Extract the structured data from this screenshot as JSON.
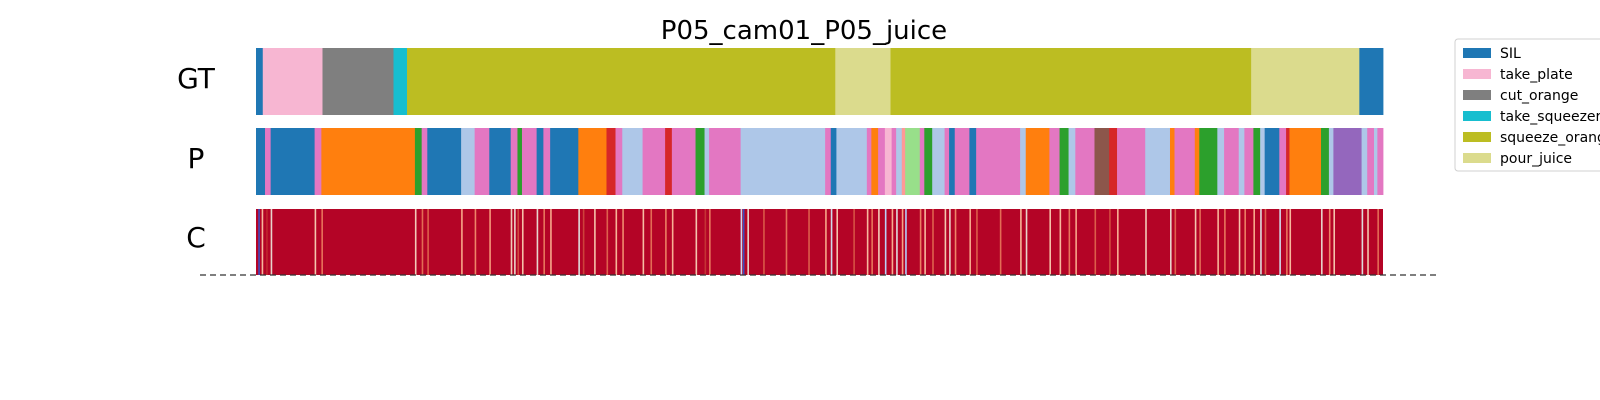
{
  "chart_data": {
    "type": "segmentation",
    "title": "P05_cam01_P05_juice",
    "frame_range": [
      0,
      1000
    ],
    "classes": [
      {
        "name": "SIL",
        "color": "#1f77b4"
      },
      {
        "name": "take_plate",
        "color": "#f7b6d2"
      },
      {
        "name": "cut_orange",
        "color": "#7f7f7f"
      },
      {
        "name": "take_squeezer",
        "color": "#17becf"
      },
      {
        "name": "squeeze_orange",
        "color": "#bcbd22"
      },
      {
        "name": "pour_juice",
        "color": "#dbdb8d"
      }
    ],
    "rows": [
      {
        "label": "GT",
        "segments": [
          {
            "start": 0,
            "end": 6,
            "color": "#1f77b4"
          },
          {
            "start": 6,
            "end": 59,
            "color": "#f7b6d2"
          },
          {
            "start": 59,
            "end": 122,
            "color": "#7f7f7f"
          },
          {
            "start": 122,
            "end": 134,
            "color": "#17becf"
          },
          {
            "start": 134,
            "end": 514,
            "color": "#bcbd22"
          },
          {
            "start": 514,
            "end": 563,
            "color": "#dbdb8d"
          },
          {
            "start": 563,
            "end": 883,
            "color": "#bcbd22"
          },
          {
            "start": 883,
            "end": 979,
            "color": "#dbdb8d"
          },
          {
            "start": 979,
            "end": 1000,
            "color": "#1f77b4"
          }
        ]
      },
      {
        "label": "P",
        "segments": [
          {
            "start": 0,
            "end": 8,
            "color": "#1f77b4"
          },
          {
            "start": 8,
            "end": 13,
            "color": "#e377c2"
          },
          {
            "start": 13,
            "end": 52,
            "color": "#1f77b4"
          },
          {
            "start": 52,
            "end": 58,
            "color": "#e377c2"
          },
          {
            "start": 58,
            "end": 141,
            "color": "#ff7f0e"
          },
          {
            "start": 141,
            "end": 147,
            "color": "#2ca02c"
          },
          {
            "start": 147,
            "end": 152,
            "color": "#e377c2"
          },
          {
            "start": 152,
            "end": 182,
            "color": "#1f77b4"
          },
          {
            "start": 182,
            "end": 194,
            "color": "#aec7e8"
          },
          {
            "start": 194,
            "end": 207,
            "color": "#e377c2"
          },
          {
            "start": 207,
            "end": 226,
            "color": "#1f77b4"
          },
          {
            "start": 226,
            "end": 232,
            "color": "#e377c2"
          },
          {
            "start": 232,
            "end": 236,
            "color": "#2ca02c"
          },
          {
            "start": 236,
            "end": 249,
            "color": "#e377c2"
          },
          {
            "start": 249,
            "end": 255,
            "color": "#1f77b4"
          },
          {
            "start": 255,
            "end": 261,
            "color": "#e377c2"
          },
          {
            "start": 261,
            "end": 286,
            "color": "#1f77b4"
          },
          {
            "start": 286,
            "end": 311,
            "color": "#ff7f0e"
          },
          {
            "start": 311,
            "end": 319,
            "color": "#d62728"
          },
          {
            "start": 319,
            "end": 325,
            "color": "#e377c2"
          },
          {
            "start": 325,
            "end": 343,
            "color": "#aec7e8"
          },
          {
            "start": 343,
            "end": 363,
            "color": "#e377c2"
          },
          {
            "start": 363,
            "end": 369,
            "color": "#d62728"
          },
          {
            "start": 369,
            "end": 390,
            "color": "#e377c2"
          },
          {
            "start": 390,
            "end": 398,
            "color": "#2ca02c"
          },
          {
            "start": 398,
            "end": 402,
            "color": "#aec7e8"
          },
          {
            "start": 402,
            "end": 430,
            "color": "#e377c2"
          },
          {
            "start": 430,
            "end": 505,
            "color": "#aec7e8"
          },
          {
            "start": 505,
            "end": 510,
            "color": "#e377c2"
          },
          {
            "start": 510,
            "end": 515,
            "color": "#1f77b4"
          },
          {
            "start": 515,
            "end": 542,
            "color": "#aec7e8"
          },
          {
            "start": 542,
            "end": 546,
            "color": "#e377c2"
          },
          {
            "start": 546,
            "end": 552,
            "color": "#ff7f0e"
          },
          {
            "start": 552,
            "end": 558,
            "color": "#e377c2"
          },
          {
            "start": 558,
            "end": 564,
            "color": "#f7b6d2"
          },
          {
            "start": 564,
            "end": 568,
            "color": "#e377c2"
          },
          {
            "start": 568,
            "end": 573,
            "color": "#aec7e8"
          },
          {
            "start": 573,
            "end": 576,
            "color": "#ff9896"
          },
          {
            "start": 576,
            "end": 589,
            "color": "#98df8a"
          },
          {
            "start": 589,
            "end": 593,
            "color": "#e377c2"
          },
          {
            "start": 593,
            "end": 600,
            "color": "#2ca02c"
          },
          {
            "start": 600,
            "end": 611,
            "color": "#aec7e8"
          },
          {
            "start": 611,
            "end": 615,
            "color": "#e377c2"
          },
          {
            "start": 615,
            "end": 620,
            "color": "#1f77b4"
          },
          {
            "start": 620,
            "end": 633,
            "color": "#e377c2"
          },
          {
            "start": 633,
            "end": 639,
            "color": "#1f77b4"
          },
          {
            "start": 639,
            "end": 678,
            "color": "#e377c2"
          },
          {
            "start": 678,
            "end": 683,
            "color": "#aec7e8"
          },
          {
            "start": 683,
            "end": 704,
            "color": "#ff7f0e"
          },
          {
            "start": 704,
            "end": 713,
            "color": "#e377c2"
          },
          {
            "start": 713,
            "end": 721,
            "color": "#2ca02c"
          },
          {
            "start": 721,
            "end": 727,
            "color": "#aec7e8"
          },
          {
            "start": 727,
            "end": 744,
            "color": "#e377c2"
          },
          {
            "start": 744,
            "end": 757,
            "color": "#8c564b"
          },
          {
            "start": 757,
            "end": 764,
            "color": "#d62728"
          },
          {
            "start": 764,
            "end": 789,
            "color": "#e377c2"
          },
          {
            "start": 789,
            "end": 811,
            "color": "#aec7e8"
          },
          {
            "start": 811,
            "end": 815,
            "color": "#ff7f0e"
          },
          {
            "start": 815,
            "end": 833,
            "color": "#e377c2"
          },
          {
            "start": 833,
            "end": 837,
            "color": "#ff7f0e"
          },
          {
            "start": 837,
            "end": 853,
            "color": "#2ca02c"
          },
          {
            "start": 853,
            "end": 859,
            "color": "#aec7e8"
          },
          {
            "start": 859,
            "end": 872,
            "color": "#e377c2"
          },
          {
            "start": 872,
            "end": 877,
            "color": "#aec7e8"
          },
          {
            "start": 877,
            "end": 885,
            "color": "#e377c2"
          },
          {
            "start": 885,
            "end": 891,
            "color": "#2ca02c"
          },
          {
            "start": 891,
            "end": 895,
            "color": "#aec7e8"
          },
          {
            "start": 895,
            "end": 908,
            "color": "#1f77b4"
          },
          {
            "start": 908,
            "end": 914,
            "color": "#e377c2"
          },
          {
            "start": 914,
            "end": 917,
            "color": "#d62728"
          },
          {
            "start": 917,
            "end": 945,
            "color": "#ff7f0e"
          },
          {
            "start": 945,
            "end": 952,
            "color": "#2ca02c"
          },
          {
            "start": 952,
            "end": 956,
            "color": "#aec7e8"
          },
          {
            "start": 956,
            "end": 981,
            "color": "#9467bd"
          },
          {
            "start": 981,
            "end": 986,
            "color": "#aec7e8"
          },
          {
            "start": 986,
            "end": 992,
            "color": "#e377c2"
          },
          {
            "start": 992,
            "end": 995,
            "color": "#aec7e8"
          },
          {
            "start": 995,
            "end": 1000,
            "color": "#e377c2"
          }
        ]
      },
      {
        "label": "C",
        "base_color": "#b40426",
        "confidence_stripes": [
          {
            "pos": 2,
            "color": "#3b4cc0"
          },
          {
            "pos": 5,
            "color": "#f7b89c"
          },
          {
            "pos": 9,
            "color": "#c0282f"
          },
          {
            "pos": 13,
            "color": "#e7d4cb"
          },
          {
            "pos": 52,
            "color": "#f4c5ad"
          },
          {
            "pos": 58,
            "color": "#e8735a"
          },
          {
            "pos": 141,
            "color": "#f2cbb7"
          },
          {
            "pos": 147,
            "color": "#e36c55"
          },
          {
            "pos": 152,
            "color": "#dd5f4b"
          },
          {
            "pos": 182,
            "color": "#f7a688"
          },
          {
            "pos": 194,
            "color": "#ee8468"
          },
          {
            "pos": 207,
            "color": "#f4987a"
          },
          {
            "pos": 226,
            "color": "#f2cbb7"
          },
          {
            "pos": 229,
            "color": "#ead5c9"
          },
          {
            "pos": 232,
            "color": "#d24b40"
          },
          {
            "pos": 236,
            "color": "#f5c0a7"
          },
          {
            "pos": 249,
            "color": "#e7d4cb"
          },
          {
            "pos": 255,
            "color": "#e8765c"
          },
          {
            "pos": 261,
            "color": "#f7a98b"
          },
          {
            "pos": 286,
            "color": "#dddcdc"
          },
          {
            "pos": 290,
            "color": "#cd423b"
          },
          {
            "pos": 300,
            "color": "#f5c2aa"
          },
          {
            "pos": 311,
            "color": "#de614d"
          },
          {
            "pos": 319,
            "color": "#f7b497"
          },
          {
            "pos": 325,
            "color": "#f08b6e"
          },
          {
            "pos": 343,
            "color": "#f6bda2"
          },
          {
            "pos": 350,
            "color": "#e36c55"
          },
          {
            "pos": 363,
            "color": "#ec7f63"
          },
          {
            "pos": 369,
            "color": "#f7b093"
          },
          {
            "pos": 390,
            "color": "#f4c5ad"
          },
          {
            "pos": 398,
            "color": "#c53334"
          },
          {
            "pos": 402,
            "color": "#e9785d"
          },
          {
            "pos": 430,
            "color": "#cbd8ee"
          },
          {
            "pos": 432,
            "color": "#3b4cc0"
          },
          {
            "pos": 436,
            "color": "#e7d4cb"
          },
          {
            "pos": 450,
            "color": "#d95847"
          },
          {
            "pos": 470,
            "color": "#e57058"
          },
          {
            "pos": 490,
            "color": "#dc5d4a"
          },
          {
            "pos": 505,
            "color": "#f7a688"
          },
          {
            "pos": 510,
            "color": "#cfdaea"
          },
          {
            "pos": 515,
            "color": "#f5c4ac"
          },
          {
            "pos": 530,
            "color": "#d65244"
          },
          {
            "pos": 542,
            "color": "#f7b89c"
          },
          {
            "pos": 546,
            "color": "#e8765c"
          },
          {
            "pos": 552,
            "color": "#f2cbb7"
          },
          {
            "pos": 558,
            "color": "#bad0f8"
          },
          {
            "pos": 564,
            "color": "#f7ac8e"
          },
          {
            "pos": 568,
            "color": "#dddcdc"
          },
          {
            "pos": 573,
            "color": "#f6a385"
          },
          {
            "pos": 576,
            "color": "#b3cdfb"
          },
          {
            "pos": 589,
            "color": "#ec7f63"
          },
          {
            "pos": 593,
            "color": "#f7b89c"
          },
          {
            "pos": 600,
            "color": "#de614d"
          },
          {
            "pos": 611,
            "color": "#f4c5ad"
          },
          {
            "pos": 615,
            "color": "#e7d4cb"
          },
          {
            "pos": 620,
            "color": "#ee8468"
          },
          {
            "pos": 633,
            "color": "#f7a98b"
          },
          {
            "pos": 639,
            "color": "#dc5d4a"
          },
          {
            "pos": 660,
            "color": "#e36c55"
          },
          {
            "pos": 678,
            "color": "#f7b497"
          },
          {
            "pos": 683,
            "color": "#e7d4cb"
          },
          {
            "pos": 704,
            "color": "#f5c0a7"
          },
          {
            "pos": 713,
            "color": "#f7b89c"
          },
          {
            "pos": 721,
            "color": "#e8765c"
          },
          {
            "pos": 727,
            "color": "#f7a688"
          },
          {
            "pos": 744,
            "color": "#dc5d4a"
          },
          {
            "pos": 757,
            "color": "#d24b40"
          },
          {
            "pos": 764,
            "color": "#f7b093"
          },
          {
            "pos": 789,
            "color": "#f2cbb7"
          },
          {
            "pos": 811,
            "color": "#e7d4cb"
          },
          {
            "pos": 815,
            "color": "#de614d"
          },
          {
            "pos": 833,
            "color": "#f4c5ad"
          },
          {
            "pos": 837,
            "color": "#e36c55"
          },
          {
            "pos": 853,
            "color": "#f7b497"
          },
          {
            "pos": 859,
            "color": "#e8765c"
          },
          {
            "pos": 872,
            "color": "#f5c2aa"
          },
          {
            "pos": 877,
            "color": "#ec7f63"
          },
          {
            "pos": 885,
            "color": "#f7a98b"
          },
          {
            "pos": 891,
            "color": "#dddcdc"
          },
          {
            "pos": 895,
            "color": "#de614d"
          },
          {
            "pos": 908,
            "color": "#cfdaea"
          },
          {
            "pos": 914,
            "color": "#e8765c"
          },
          {
            "pos": 917,
            "color": "#f7b89c"
          },
          {
            "pos": 945,
            "color": "#e7d4cb"
          },
          {
            "pos": 952,
            "color": "#ee8468"
          },
          {
            "pos": 956,
            "color": "#f5c4ac"
          },
          {
            "pos": 981,
            "color": "#dddcdc"
          },
          {
            "pos": 986,
            "color": "#f4c5ad"
          },
          {
            "pos": 995,
            "color": "#e36c55"
          }
        ]
      }
    ],
    "legend": {
      "placement": "upper-right",
      "entries": [
        "SIL",
        "take_plate",
        "cut_orange",
        "take_squeezer",
        "squeeze_orange",
        "pour_juice"
      ]
    }
  }
}
